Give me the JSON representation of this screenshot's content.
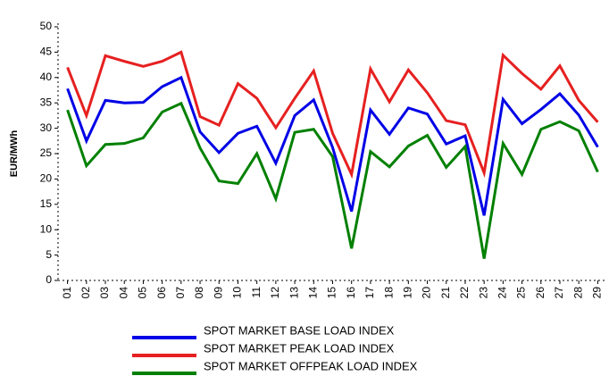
{
  "chart_data": {
    "type": "line",
    "y_label": "EUR/MWh",
    "categories": [
      "01",
      "02",
      "03",
      "04",
      "05",
      "06",
      "07",
      "08",
      "09",
      "10",
      "11",
      "12",
      "13",
      "14",
      "15",
      "16",
      "17",
      "18",
      "19",
      "20",
      "21",
      "22",
      "23",
      "24",
      "25",
      "26",
      "27",
      "28",
      "29"
    ],
    "series": [
      {
        "name": "SPOT MARKET BASE LOAD INDEX",
        "color": "#0000e6",
        "values": [
          37.8,
          27.5,
          35.5,
          35,
          35.1,
          38.2,
          40,
          29.3,
          25.2,
          29,
          30.4,
          23.1,
          32.5,
          35.6,
          26.2,
          13.6,
          33.6,
          28.8,
          34,
          32.8,
          26.9,
          28.5,
          12.8,
          35.7,
          30.9,
          33.7,
          36.8,
          32.6,
          26.3
        ]
      },
      {
        "name": "SPOT MARKET PEAK LOAD INDEX",
        "color": "#e62020",
        "values": [
          42,
          32.5,
          44.3,
          43.2,
          42.2,
          43.2,
          45,
          32.3,
          30.6,
          38.8,
          35.9,
          30.1,
          35.9,
          41.3,
          29,
          20.9,
          41.7,
          35.2,
          41.5,
          37,
          31.5,
          30.7,
          21.2,
          44.4,
          40.8,
          37.7,
          42.3,
          35.5,
          31.2
        ]
      },
      {
        "name": "SPOT MARKET OFFPEAK LOAD INDEX",
        "color": "#008000",
        "values": [
          33.6,
          22.6,
          26.8,
          27,
          28.1,
          33.2,
          34.9,
          26.1,
          19.6,
          19.1,
          25,
          16.1,
          29.2,
          29.8,
          24.4,
          6.3,
          25.4,
          22.4,
          26.5,
          28.6,
          22.3,
          26.4,
          4.3,
          27,
          20.9,
          29.8,
          31.3,
          29.5,
          21.4
        ]
      }
    ],
    "ylim": [
      0,
      50
    ],
    "yticks": [
      0,
      5,
      10,
      15,
      20,
      25,
      30,
      35,
      40,
      45,
      50
    ]
  }
}
